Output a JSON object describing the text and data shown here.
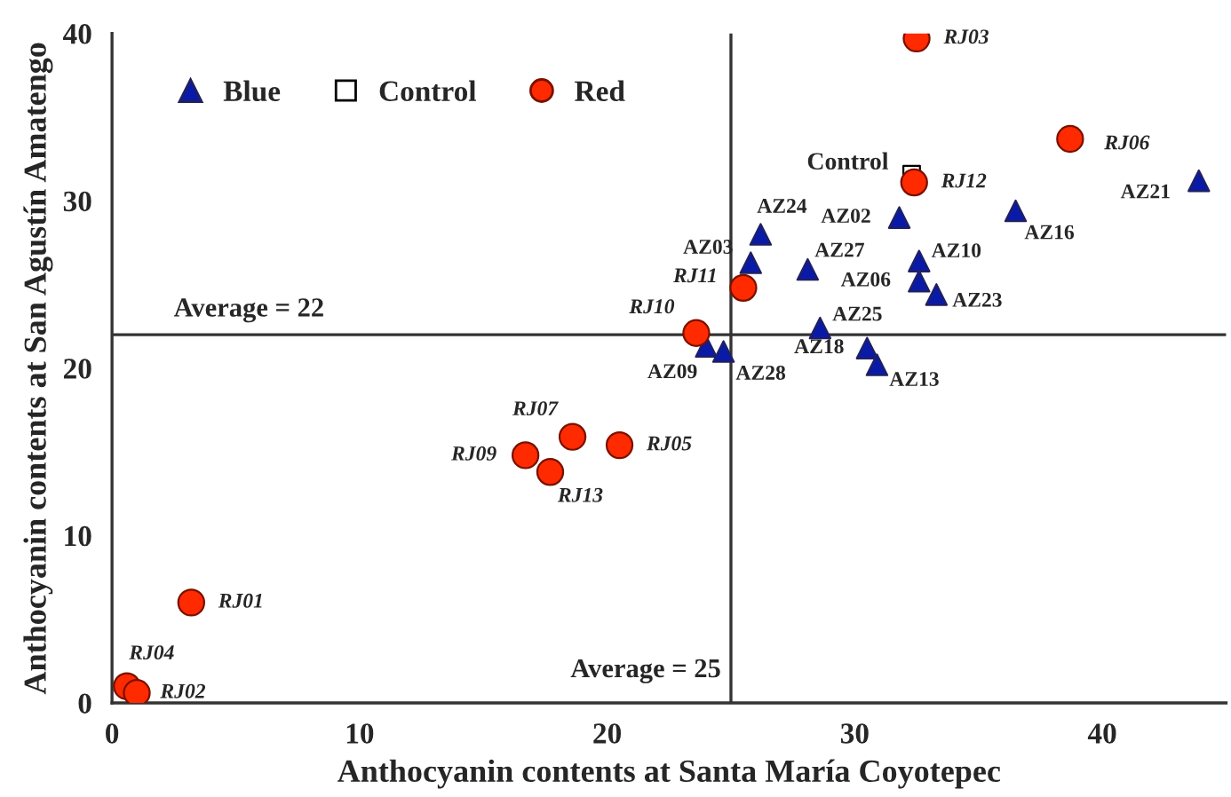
{
  "chart_data": {
    "type": "scatter",
    "xlabel": "Anthocyanin contents at Santa María Coyotepec",
    "ylabel": "Anthocyanin contents at San Agustín Amatengo",
    "xlim": [
      0,
      45
    ],
    "ylim": [
      0,
      40
    ],
    "xticks": [
      0,
      10,
      20,
      30,
      40
    ],
    "yticks": [
      0,
      10,
      20,
      30,
      40
    ],
    "grid": false,
    "legend": "top left",
    "series": [
      {
        "name": "Blue",
        "color": "#0a1aa8",
        "marker": "triangle",
        "x": [
          26.2,
          25.8,
          28.1,
          31.8,
          32.6,
          32.6,
          33.3,
          36.5,
          43.9,
          28.6,
          30.5,
          30.9,
          24.0,
          24.7
        ],
        "values": [
          28.0,
          26.3,
          25.9,
          29.0,
          26.4,
          25.2,
          24.4,
          29.4,
          31.2,
          22.4,
          21.2,
          20.2,
          21.3,
          21.0
        ]
      },
      {
        "name": "Control",
        "color": "#ffffff",
        "marker": "square",
        "x": [
          32.3
        ],
        "values": [
          31.6
        ]
      },
      {
        "name": "Red",
        "color": "#ff2a00",
        "marker": "circle",
        "x": [
          32.5,
          38.7,
          32.4,
          25.5,
          23.6,
          18.6,
          16.7,
          17.7,
          20.5,
          3.2,
          0.6,
          1.0
        ],
        "values": [
          39.7,
          33.7,
          31.1,
          24.8,
          22.1,
          15.9,
          14.8,
          13.8,
          15.4,
          6.0,
          1.0,
          0.6
        ]
      }
    ],
    "ref_lines": [
      {
        "axis": "y",
        "value": 22,
        "label": "Average = 22"
      },
      {
        "axis": "x",
        "value": 25,
        "label": "Average = 25"
      }
    ],
    "annotations": [
      {
        "text": "AZ24",
        "x": 26.2,
        "y": 28.0
      },
      {
        "text": "AZ03",
        "x": 25.8,
        "y": 26.3
      },
      {
        "text": "AZ27",
        "x": 28.1,
        "y": 25.9
      },
      {
        "text": "AZ02",
        "x": 31.8,
        "y": 29.0
      },
      {
        "text": "AZ10",
        "x": 32.6,
        "y": 26.4
      },
      {
        "text": "AZ06",
        "x": 32.6,
        "y": 25.2
      },
      {
        "text": "AZ23",
        "x": 33.3,
        "y": 24.4
      },
      {
        "text": "AZ16",
        "x": 36.5,
        "y": 29.4
      },
      {
        "text": "AZ21",
        "x": 43.9,
        "y": 31.2
      },
      {
        "text": "AZ25",
        "x": 28.6,
        "y": 22.4
      },
      {
        "text": "AZ18",
        "x": 30.5,
        "y": 21.2
      },
      {
        "text": "AZ13",
        "x": 30.9,
        "y": 20.2
      },
      {
        "text": "AZ09",
        "x": 24.0,
        "y": 21.3
      },
      {
        "text": "AZ28",
        "x": 24.7,
        "y": 21.0
      },
      {
        "text": "Control",
        "x": 32.3,
        "y": 31.6
      },
      {
        "text": "RJ03",
        "x": 32.5,
        "y": 39.7
      },
      {
        "text": "RJ06",
        "x": 38.7,
        "y": 33.7
      },
      {
        "text": "RJ12",
        "x": 32.4,
        "y": 31.1
      },
      {
        "text": "RJ11",
        "x": 25.5,
        "y": 24.8
      },
      {
        "text": "RJ10",
        "x": 23.6,
        "y": 22.1
      },
      {
        "text": "RJ07",
        "x": 18.6,
        "y": 15.9
      },
      {
        "text": "RJ09",
        "x": 16.7,
        "y": 14.8
      },
      {
        "text": "RJ13",
        "x": 17.7,
        "y": 13.8
      },
      {
        "text": "RJ05",
        "x": 20.5,
        "y": 15.4
      },
      {
        "text": "RJ01",
        "x": 3.2,
        "y": 6.0
      },
      {
        "text": "RJ04",
        "x": 0.6,
        "y": 1.0
      },
      {
        "text": "RJ02",
        "x": 1.0,
        "y": 0.6
      }
    ]
  }
}
